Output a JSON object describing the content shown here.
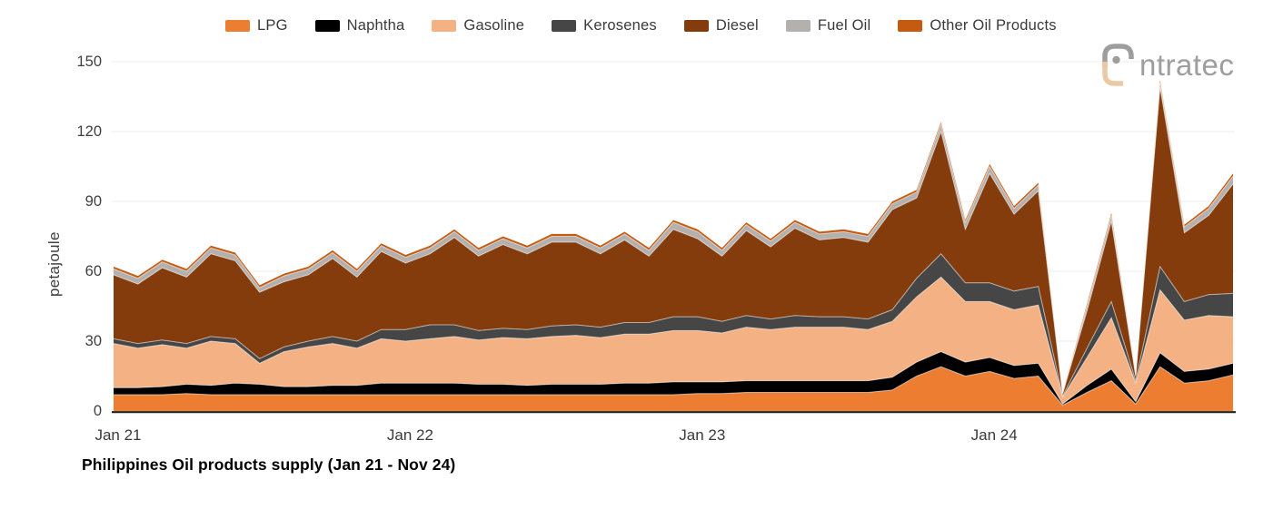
{
  "title": "Philippines Oil products supply (Jan 21 - Nov 24)",
  "logo": {
    "brand": "intratec",
    "text": "ntratec",
    "gray": "#9e9e9e",
    "tan": "#ecc8a4"
  },
  "y_axis": {
    "label": "petajoule",
    "ticks": [
      0,
      30,
      60,
      90,
      120,
      150
    ]
  },
  "x_axis": {
    "ticks": [
      "Jan 21",
      "Jan 22",
      "Jan 23",
      "Jan 24"
    ],
    "tick_month_indices": [
      0,
      12,
      24,
      36
    ]
  },
  "chart_data": {
    "type": "area",
    "stacked": true,
    "title": "Philippines Oil products supply (Jan 21 - Nov 24)",
    "ylabel": "petajoule",
    "ylim": [
      0,
      150
    ],
    "grid": true,
    "legend_position": "top",
    "x": [
      "Jan 21",
      "Feb 21",
      "Mar 21",
      "Apr 21",
      "May 21",
      "Jun 21",
      "Jul 21",
      "Aug 21",
      "Sep 21",
      "Oct 21",
      "Nov 21",
      "Dec 21",
      "Jan 22",
      "Feb 22",
      "Mar 22",
      "Apr 22",
      "May 22",
      "Jun 22",
      "Jul 22",
      "Aug 22",
      "Sep 22",
      "Oct 22",
      "Nov 22",
      "Dec 22",
      "Jan 23",
      "Feb 23",
      "Mar 23",
      "Apr 23",
      "May 23",
      "Jun 23",
      "Jul 23",
      "Aug 23",
      "Sep 23",
      "Oct 23",
      "Nov 23",
      "Dec 23",
      "Jan 24",
      "Feb 24",
      "Mar 24",
      "Apr 24",
      "May 24",
      "Jun 24",
      "Jul 24",
      "Aug 24",
      "Sep 24",
      "Oct 24",
      "Nov 24"
    ],
    "series": [
      {
        "name": "LPG",
        "color": "#ED7D31",
        "values": [
          7,
          7,
          7,
          7.5,
          7,
          7,
          7,
          7,
          7,
          7,
          7,
          7,
          7,
          7,
          7,
          7,
          7,
          7,
          7,
          7,
          7,
          7,
          7,
          7,
          7.5,
          7.5,
          8,
          8,
          8,
          8,
          8,
          8,
          9,
          15,
          19,
          15,
          17,
          14,
          15,
          2.5,
          8,
          13,
          3,
          19,
          12,
          13,
          15.5
        ]
      },
      {
        "name": "Naphtha",
        "color": "#000000",
        "values": [
          3,
          3,
          3.5,
          4,
          4,
          5,
          4.5,
          3.5,
          3.5,
          4,
          4,
          5,
          5,
          5,
          5,
          4.5,
          4.5,
          4,
          4.5,
          4.5,
          4.5,
          5,
          5,
          5.5,
          5,
          5,
          5,
          5,
          5,
          5,
          5,
          5,
          5.5,
          6,
          6.5,
          6,
          6,
          5.5,
          5.5,
          0.5,
          3,
          5,
          1,
          6,
          5,
          5,
          5
        ]
      },
      {
        "name": "Gasoline",
        "color": "#F4B183",
        "values": [
          19,
          17,
          18,
          15.5,
          19,
          17,
          9,
          15,
          17,
          18,
          16,
          19,
          18,
          19,
          20,
          19,
          20,
          20,
          20.5,
          21,
          20,
          21,
          21,
          22,
          22,
          21,
          23,
          22,
          23,
          23,
          23,
          22,
          24,
          28,
          32,
          26,
          24,
          24,
          25,
          3,
          12,
          22,
          8,
          27,
          22,
          23,
          20
        ]
      },
      {
        "name": "Kerosenes",
        "color": "#464646",
        "values": [
          2,
          2,
          2,
          2,
          2,
          2,
          2,
          2,
          2.5,
          3,
          3,
          4,
          5,
          6,
          5,
          4,
          4,
          4,
          4.5,
          4.5,
          4.5,
          5,
          5,
          6,
          6,
          5,
          5,
          4.5,
          5,
          4.5,
          4.5,
          4.5,
          5,
          8,
          10,
          8,
          8,
          8,
          8,
          0.5,
          4,
          7,
          1,
          10,
          8,
          9,
          10
        ]
      },
      {
        "name": "Diesel",
        "color": "#843C0C",
        "values": [
          27.5,
          25.5,
          31,
          28.5,
          35.5,
          33.5,
          28.5,
          28,
          28.5,
          33.5,
          27.5,
          33.5,
          28.5,
          30.5,
          37.5,
          32,
          36,
          32.5,
          36,
          35.5,
          31.5,
          35.5,
          28.5,
          37.5,
          33.5,
          28,
          36.5,
          31,
          37.5,
          33,
          34,
          33,
          43,
          34.5,
          52.5,
          23,
          47,
          33,
          41,
          1,
          16,
          34.5,
          2,
          77,
          29.5,
          34,
          47
        ]
      },
      {
        "name": "Fuel Oil",
        "color": "#B3B0AE",
        "values": [
          2.5,
          2.5,
          2.5,
          2.5,
          2.5,
          2.5,
          2,
          2.5,
          2.5,
          2.5,
          2.5,
          2.5,
          2.5,
          2.5,
          2.5,
          2.5,
          2.5,
          2.5,
          2.5,
          2.5,
          2.5,
          2.5,
          2.5,
          3,
          3,
          2.5,
          2.5,
          2.5,
          2.5,
          2.5,
          2.5,
          2.5,
          2.5,
          2.5,
          3,
          3,
          3,
          2.5,
          2.5,
          0.3,
          2,
          2.5,
          0.5,
          2,
          2.5,
          3,
          3.3
        ]
      },
      {
        "name": "Other Oil Products",
        "color": "#C55A11",
        "values": [
          1,
          1,
          1,
          1,
          1,
          1,
          1,
          1,
          1,
          1,
          1,
          1,
          1,
          1,
          1,
          1,
          1,
          1,
          1,
          1,
          1,
          1,
          1,
          1,
          1,
          1,
          1,
          1,
          1,
          1,
          1,
          1,
          1,
          1,
          1,
          1,
          1,
          1,
          1,
          0.2,
          1,
          1,
          0.5,
          1,
          1,
          1,
          1.2
        ]
      }
    ]
  },
  "style": {
    "grid_color": "#ececec",
    "axis_color": "#1f1f1f",
    "separator_color": "#ffffff"
  }
}
